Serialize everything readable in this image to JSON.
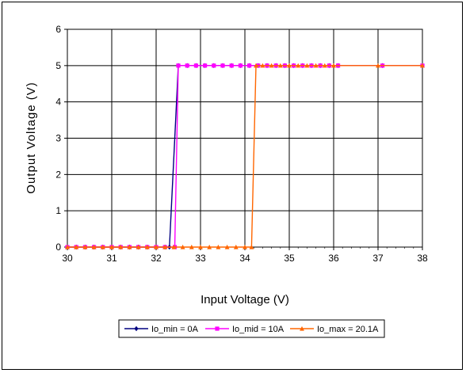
{
  "chart_data": {
    "type": "line",
    "title": "",
    "xlabel": "Input Voltage (V)",
    "ylabel": "Output Voltage (V)",
    "xlim": [
      30,
      38
    ],
    "ylim": [
      0,
      6
    ],
    "x_ticks": [
      "30",
      "31",
      "32",
      "33",
      "34",
      "35",
      "36",
      "37",
      "38"
    ],
    "y_ticks": [
      "0",
      "1",
      "2",
      "3",
      "4",
      "5",
      "6"
    ],
    "grid": true,
    "legend_position": "bottom",
    "series": [
      {
        "name": "Io_min = 0A",
        "color": "#000080",
        "marker": "diamond",
        "x": [
          30.0,
          30.2,
          30.4,
          30.6,
          30.8,
          31.0,
          31.2,
          31.4,
          31.6,
          31.8,
          32.0,
          32.2,
          32.3,
          32.5,
          32.7,
          32.9,
          33.1,
          33.3,
          33.5,
          33.7,
          33.9,
          34.1,
          34.3,
          34.5,
          34.7,
          34.9,
          35.1,
          35.3,
          35.5,
          35.7,
          35.9,
          36.1,
          37.1,
          38.0
        ],
        "y": [
          0,
          0,
          0,
          0,
          0,
          0,
          0,
          0,
          0,
          0,
          0,
          0,
          0,
          5,
          5,
          5,
          5,
          5,
          5,
          5,
          5,
          5,
          5,
          5,
          5,
          5,
          5,
          5,
          5,
          5,
          5,
          5,
          5,
          5
        ]
      },
      {
        "name": "Io_mid = 10A",
        "color": "#ff00ff",
        "marker": "square",
        "x": [
          30.0,
          30.2,
          30.4,
          30.6,
          30.8,
          31.0,
          31.2,
          31.4,
          31.6,
          31.8,
          32.0,
          32.2,
          32.42,
          32.5,
          32.7,
          32.9,
          33.1,
          33.3,
          33.5,
          33.7,
          33.9,
          34.1,
          34.3,
          34.5,
          34.7,
          34.9,
          35.1,
          35.3,
          35.5,
          35.7,
          35.9,
          36.1,
          37.1,
          38.0
        ],
        "y": [
          0,
          0,
          0,
          0,
          0,
          0,
          0,
          0,
          0,
          0,
          0,
          0,
          0,
          5,
          5,
          5,
          5,
          5,
          5,
          5,
          5,
          5,
          5,
          5,
          5,
          5,
          5,
          5,
          5,
          5,
          5,
          5,
          5,
          5
        ]
      },
      {
        "name": "Io_max = 20.1A",
        "color": "#ff6600",
        "marker": "triangle",
        "x": [
          30.0,
          30.2,
          30.4,
          30.6,
          30.8,
          31.0,
          31.2,
          31.4,
          31.6,
          31.8,
          32.0,
          32.2,
          32.4,
          32.6,
          32.8,
          33.0,
          33.2,
          33.4,
          33.6,
          33.8,
          34.0,
          34.15,
          34.25,
          34.4,
          34.6,
          34.8,
          35.0,
          35.2,
          35.4,
          35.6,
          35.8,
          36.0,
          37.0,
          38.0
        ],
        "y": [
          0,
          0,
          0,
          0,
          0,
          0,
          0,
          0,
          0,
          0,
          0,
          0,
          0,
          0,
          0,
          0,
          0,
          0,
          0,
          0,
          0,
          0,
          5,
          5,
          5,
          5,
          5,
          5,
          5,
          5,
          5,
          5,
          5,
          5
        ]
      }
    ]
  }
}
